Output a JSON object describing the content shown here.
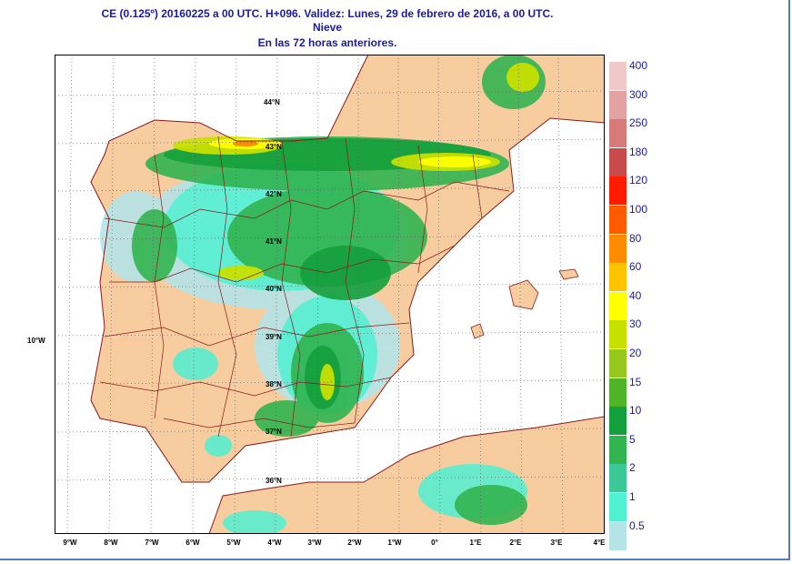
{
  "title": {
    "line1": "CE (0.125º) 20160225 a 00 UTC.  H+096. Validez: Lunes, 29 de febrero de 2016,  a  00 UTC.",
    "line2": "Nieve",
    "line3": "En las 72 horas anteriores."
  },
  "map": {
    "lat_labels": [
      "44°N",
      "43°N",
      "42°N",
      "41°N",
      "40°N",
      "39°N",
      "38°N",
      "37°N",
      "36°N"
    ],
    "lon_labels": [
      "9°W",
      "8°W",
      "7°W",
      "6°W",
      "5°W",
      "4°W",
      "3°W",
      "2°W",
      "1°W",
      "0°",
      "1°E",
      "2°E",
      "3°E",
      "4°E"
    ],
    "side_label": "10°W",
    "colors": {
      "land": "#f7cc9f",
      "sea": "#ffffff",
      "border": "#8a1a1a"
    }
  },
  "legend": {
    "items": [
      {
        "label": "400",
        "color": "#f0c8c8"
      },
      {
        "label": "300",
        "color": "#e3a2a2"
      },
      {
        "label": "250",
        "color": "#d67a7a"
      },
      {
        "label": "180",
        "color": "#c84a4a"
      },
      {
        "label": "120",
        "color": "#ff1a00"
      },
      {
        "label": "100",
        "color": "#ff5a00"
      },
      {
        "label": "80",
        "color": "#ff8c00"
      },
      {
        "label": "60",
        "color": "#ffc300"
      },
      {
        "label": "40",
        "color": "#ffff00"
      },
      {
        "label": "30",
        "color": "#c8e000"
      },
      {
        "label": "20",
        "color": "#96c81e"
      },
      {
        "label": "15",
        "color": "#50b428"
      },
      {
        "label": "10",
        "color": "#14a03c"
      },
      {
        "label": "5",
        "color": "#32b450"
      },
      {
        "label": "2",
        "color": "#3cc896"
      },
      {
        "label": "1",
        "color": "#50f0d2"
      },
      {
        "label": "0.5",
        "color": "#b4e4e8"
      }
    ]
  }
}
